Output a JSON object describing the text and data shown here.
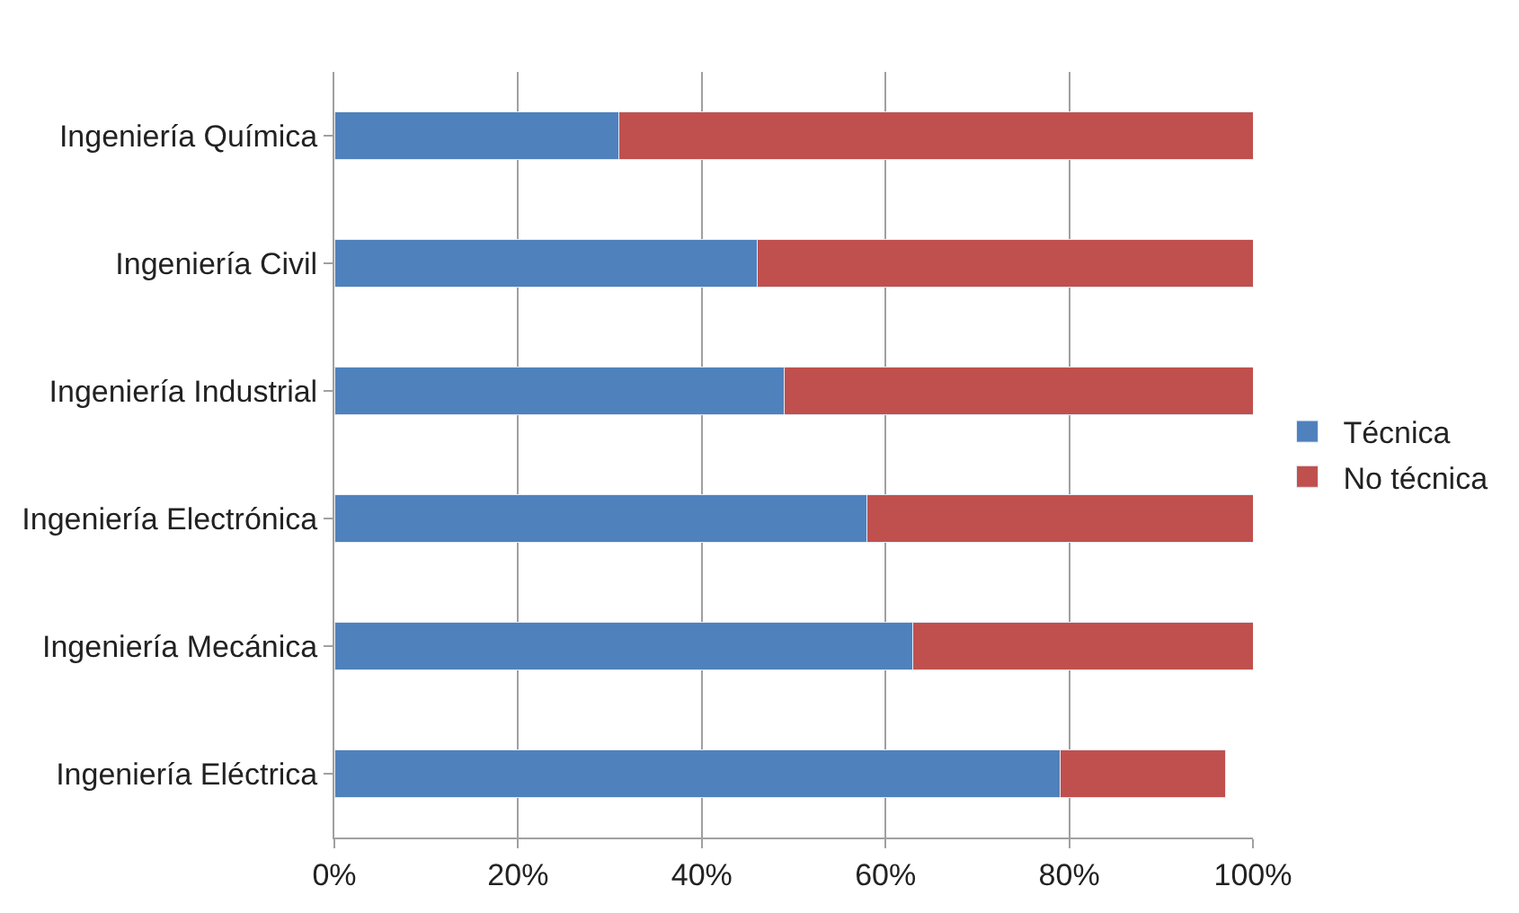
{
  "chart_data": {
    "type": "bar",
    "orientation": "horizontal",
    "stacked": true,
    "categories": [
      "Ingeniería Química",
      "Ingeniería Civil",
      "Ingeniería Industrial",
      "Ingeniería Electrónica",
      "Ingeniería Mecánica",
      "Ingeniería Eléctrica"
    ],
    "series": [
      {
        "name": "Técnica",
        "color": "#4f81bd",
        "values": [
          31,
          46,
          49,
          58,
          63,
          79
        ]
      },
      {
        "name": "No técnica",
        "color": "#c0504d",
        "values": [
          69,
          54,
          51,
          42,
          37,
          18
        ]
      }
    ],
    "xlim": [
      0,
      100
    ],
    "xticks": [
      {
        "value": 0,
        "label": "0%"
      },
      {
        "value": 20,
        "label": "20%"
      },
      {
        "value": 40,
        "label": "40%"
      },
      {
        "value": 60,
        "label": "60%"
      },
      {
        "value": 80,
        "label": "80%"
      },
      {
        "value": 100,
        "label": "100%"
      }
    ],
    "grid": "x",
    "legend": "right"
  }
}
